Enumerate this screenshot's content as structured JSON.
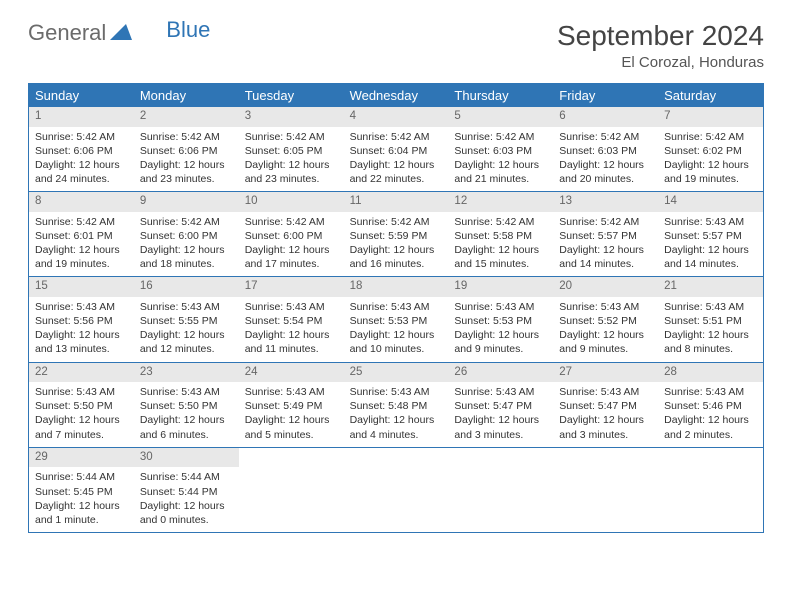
{
  "logo": {
    "word1": "General",
    "word2": "Blue"
  },
  "title": "September 2024",
  "location": "El Corozal, Honduras",
  "colors": {
    "header_bg": "#2f75b5",
    "header_text": "#ffffff",
    "daynum_bg": "#e8e8e8",
    "daynum_text": "#666666",
    "border": "#2f75b5",
    "body_text": "#333333",
    "logo_gray": "#6b6b6b",
    "logo_blue": "#2f75b5"
  },
  "day_names": [
    "Sunday",
    "Monday",
    "Tuesday",
    "Wednesday",
    "Thursday",
    "Friday",
    "Saturday"
  ],
  "weeks": [
    [
      {
        "n": "1",
        "sr": "Sunrise: 5:42 AM",
        "ss": "Sunset: 6:06 PM",
        "d1": "Daylight: 12 hours",
        "d2": "and 24 minutes."
      },
      {
        "n": "2",
        "sr": "Sunrise: 5:42 AM",
        "ss": "Sunset: 6:06 PM",
        "d1": "Daylight: 12 hours",
        "d2": "and 23 minutes."
      },
      {
        "n": "3",
        "sr": "Sunrise: 5:42 AM",
        "ss": "Sunset: 6:05 PM",
        "d1": "Daylight: 12 hours",
        "d2": "and 23 minutes."
      },
      {
        "n": "4",
        "sr": "Sunrise: 5:42 AM",
        "ss": "Sunset: 6:04 PM",
        "d1": "Daylight: 12 hours",
        "d2": "and 22 minutes."
      },
      {
        "n": "5",
        "sr": "Sunrise: 5:42 AM",
        "ss": "Sunset: 6:03 PM",
        "d1": "Daylight: 12 hours",
        "d2": "and 21 minutes."
      },
      {
        "n": "6",
        "sr": "Sunrise: 5:42 AM",
        "ss": "Sunset: 6:03 PM",
        "d1": "Daylight: 12 hours",
        "d2": "and 20 minutes."
      },
      {
        "n": "7",
        "sr": "Sunrise: 5:42 AM",
        "ss": "Sunset: 6:02 PM",
        "d1": "Daylight: 12 hours",
        "d2": "and 19 minutes."
      }
    ],
    [
      {
        "n": "8",
        "sr": "Sunrise: 5:42 AM",
        "ss": "Sunset: 6:01 PM",
        "d1": "Daylight: 12 hours",
        "d2": "and 19 minutes."
      },
      {
        "n": "9",
        "sr": "Sunrise: 5:42 AM",
        "ss": "Sunset: 6:00 PM",
        "d1": "Daylight: 12 hours",
        "d2": "and 18 minutes."
      },
      {
        "n": "10",
        "sr": "Sunrise: 5:42 AM",
        "ss": "Sunset: 6:00 PM",
        "d1": "Daylight: 12 hours",
        "d2": "and 17 minutes."
      },
      {
        "n": "11",
        "sr": "Sunrise: 5:42 AM",
        "ss": "Sunset: 5:59 PM",
        "d1": "Daylight: 12 hours",
        "d2": "and 16 minutes."
      },
      {
        "n": "12",
        "sr": "Sunrise: 5:42 AM",
        "ss": "Sunset: 5:58 PM",
        "d1": "Daylight: 12 hours",
        "d2": "and 15 minutes."
      },
      {
        "n": "13",
        "sr": "Sunrise: 5:42 AM",
        "ss": "Sunset: 5:57 PM",
        "d1": "Daylight: 12 hours",
        "d2": "and 14 minutes."
      },
      {
        "n": "14",
        "sr": "Sunrise: 5:43 AM",
        "ss": "Sunset: 5:57 PM",
        "d1": "Daylight: 12 hours",
        "d2": "and 14 minutes."
      }
    ],
    [
      {
        "n": "15",
        "sr": "Sunrise: 5:43 AM",
        "ss": "Sunset: 5:56 PM",
        "d1": "Daylight: 12 hours",
        "d2": "and 13 minutes."
      },
      {
        "n": "16",
        "sr": "Sunrise: 5:43 AM",
        "ss": "Sunset: 5:55 PM",
        "d1": "Daylight: 12 hours",
        "d2": "and 12 minutes."
      },
      {
        "n": "17",
        "sr": "Sunrise: 5:43 AM",
        "ss": "Sunset: 5:54 PM",
        "d1": "Daylight: 12 hours",
        "d2": "and 11 minutes."
      },
      {
        "n": "18",
        "sr": "Sunrise: 5:43 AM",
        "ss": "Sunset: 5:53 PM",
        "d1": "Daylight: 12 hours",
        "d2": "and 10 minutes."
      },
      {
        "n": "19",
        "sr": "Sunrise: 5:43 AM",
        "ss": "Sunset: 5:53 PM",
        "d1": "Daylight: 12 hours",
        "d2": "and 9 minutes."
      },
      {
        "n": "20",
        "sr": "Sunrise: 5:43 AM",
        "ss": "Sunset: 5:52 PM",
        "d1": "Daylight: 12 hours",
        "d2": "and 9 minutes."
      },
      {
        "n": "21",
        "sr": "Sunrise: 5:43 AM",
        "ss": "Sunset: 5:51 PM",
        "d1": "Daylight: 12 hours",
        "d2": "and 8 minutes."
      }
    ],
    [
      {
        "n": "22",
        "sr": "Sunrise: 5:43 AM",
        "ss": "Sunset: 5:50 PM",
        "d1": "Daylight: 12 hours",
        "d2": "and 7 minutes."
      },
      {
        "n": "23",
        "sr": "Sunrise: 5:43 AM",
        "ss": "Sunset: 5:50 PM",
        "d1": "Daylight: 12 hours",
        "d2": "and 6 minutes."
      },
      {
        "n": "24",
        "sr": "Sunrise: 5:43 AM",
        "ss": "Sunset: 5:49 PM",
        "d1": "Daylight: 12 hours",
        "d2": "and 5 minutes."
      },
      {
        "n": "25",
        "sr": "Sunrise: 5:43 AM",
        "ss": "Sunset: 5:48 PM",
        "d1": "Daylight: 12 hours",
        "d2": "and 4 minutes."
      },
      {
        "n": "26",
        "sr": "Sunrise: 5:43 AM",
        "ss": "Sunset: 5:47 PM",
        "d1": "Daylight: 12 hours",
        "d2": "and 3 minutes."
      },
      {
        "n": "27",
        "sr": "Sunrise: 5:43 AM",
        "ss": "Sunset: 5:47 PM",
        "d1": "Daylight: 12 hours",
        "d2": "and 3 minutes."
      },
      {
        "n": "28",
        "sr": "Sunrise: 5:43 AM",
        "ss": "Sunset: 5:46 PM",
        "d1": "Daylight: 12 hours",
        "d2": "and 2 minutes."
      }
    ],
    [
      {
        "n": "29",
        "sr": "Sunrise: 5:44 AM",
        "ss": "Sunset: 5:45 PM",
        "d1": "Daylight: 12 hours",
        "d2": "and 1 minute."
      },
      {
        "n": "30",
        "sr": "Sunrise: 5:44 AM",
        "ss": "Sunset: 5:44 PM",
        "d1": "Daylight: 12 hours",
        "d2": "and 0 minutes."
      },
      {
        "empty": true
      },
      {
        "empty": true
      },
      {
        "empty": true
      },
      {
        "empty": true
      },
      {
        "empty": true
      }
    ]
  ]
}
